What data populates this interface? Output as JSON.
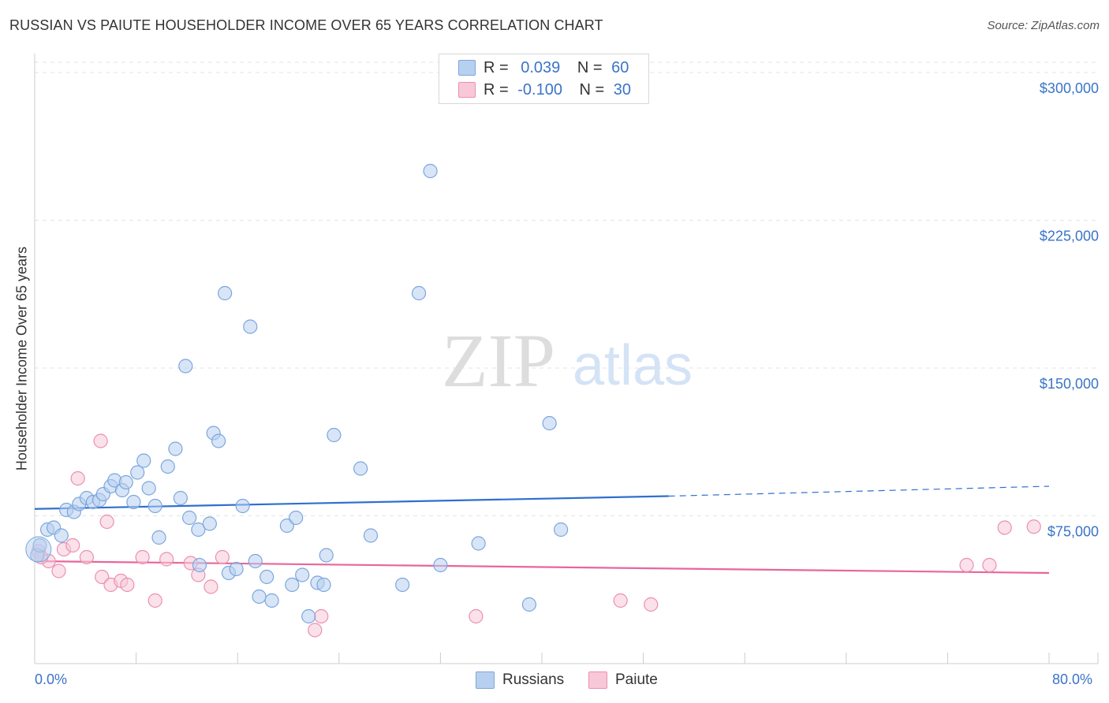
{
  "title": "RUSSIAN VS PAIUTE HOUSEHOLDER INCOME OVER 65 YEARS CORRELATION CHART",
  "source": "Source: ZipAtlas.com",
  "watermark": {
    "zip": "ZIP",
    "atlas": "atlas"
  },
  "legend": {
    "r_label": "R =",
    "n_label": "N =",
    "russians": {
      "r": "0.039",
      "n": "60"
    },
    "paiute": {
      "r": "-0.100",
      "n": "30"
    }
  },
  "bottom_legend": {
    "russians": "Russians",
    "paiute": "Paiute"
  },
  "colors": {
    "russians_fill": "#b8d0f0",
    "russians_stroke": "#7aa6dd",
    "russians_line": "#2f6fcf",
    "paiute_fill": "#f8c8d8",
    "paiute_stroke": "#eb8fb0",
    "paiute_line": "#e8669a",
    "tick_label": "#3a74c8",
    "grid": "#e3e3e3"
  },
  "chart_data": {
    "type": "scatter",
    "title": "RUSSIAN VS PAIUTE HOUSEHOLDER INCOME OVER 65 YEARS CORRELATION CHART",
    "xlabel": "",
    "ylabel": "Householder Income Over 65 years",
    "xlim": [
      0,
      80
    ],
    "ylim": [
      0,
      312000
    ],
    "x_tick_labels": [
      "0.0%",
      "80.0%"
    ],
    "y_ticks": [
      75000,
      150000,
      225000,
      300000
    ],
    "y_tick_labels": [
      "$75,000",
      "$150,000",
      "$225,000",
      "$300,000"
    ],
    "grid": true,
    "series": [
      {
        "name": "Russians",
        "r": 0.039,
        "n": 60,
        "trend": {
          "x0": 0,
          "y0": 78500,
          "x1": 50,
          "y1": 85000,
          "dash_x1": 80,
          "dash_y1": 90000
        },
        "points": [
          [
            0.2,
            55000
          ],
          [
            0.4,
            60000
          ],
          [
            1.0,
            68000
          ],
          [
            1.5,
            69000
          ],
          [
            2.1,
            65000
          ],
          [
            2.5,
            78000
          ],
          [
            3.1,
            77000
          ],
          [
            3.5,
            81000
          ],
          [
            4.1,
            84000
          ],
          [
            4.6,
            82000
          ],
          [
            5.1,
            83000
          ],
          [
            5.4,
            86000
          ],
          [
            6.0,
            90000
          ],
          [
            6.3,
            93000
          ],
          [
            6.9,
            88000
          ],
          [
            7.2,
            92000
          ],
          [
            7.8,
            82000
          ],
          [
            8.1,
            97000
          ],
          [
            8.6,
            103000
          ],
          [
            9.0,
            89000
          ],
          [
            9.5,
            80000
          ],
          [
            9.8,
            64000
          ],
          [
            10.5,
            100000
          ],
          [
            11.1,
            109000
          ],
          [
            11.5,
            84000
          ],
          [
            11.9,
            151000
          ],
          [
            12.2,
            74000
          ],
          [
            12.9,
            68000
          ],
          [
            13.0,
            50000
          ],
          [
            13.8,
            71000
          ],
          [
            14.1,
            117000
          ],
          [
            14.5,
            113000
          ],
          [
            15.0,
            188000
          ],
          [
            15.3,
            46000
          ],
          [
            15.9,
            48000
          ],
          [
            16.4,
            80000
          ],
          [
            17.0,
            171000
          ],
          [
            17.4,
            52000
          ],
          [
            17.7,
            34000
          ],
          [
            18.3,
            44000
          ],
          [
            18.7,
            32000
          ],
          [
            19.9,
            70000
          ],
          [
            20.3,
            40000
          ],
          [
            20.6,
            74000
          ],
          [
            21.1,
            45000
          ],
          [
            21.6,
            24000
          ],
          [
            22.3,
            41000
          ],
          [
            22.8,
            40000
          ],
          [
            23.0,
            55000
          ],
          [
            23.6,
            116000
          ],
          [
            25.7,
            99000
          ],
          [
            26.5,
            65000
          ],
          [
            29.0,
            40000
          ],
          [
            30.3,
            188000
          ],
          [
            31.2,
            250000
          ],
          [
            32.0,
            50000
          ],
          [
            35.0,
            61000
          ],
          [
            39.0,
            30000
          ],
          [
            40.6,
            122000
          ],
          [
            41.5,
            68000
          ]
        ]
      },
      {
        "name": "Paiute",
        "r": -0.1,
        "n": 30,
        "trend": {
          "x0": 0,
          "y0": 52000,
          "x1": 80,
          "y1": 46000
        },
        "points": [
          [
            0.3,
            57000
          ],
          [
            1.1,
            52000
          ],
          [
            1.9,
            47000
          ],
          [
            2.3,
            58000
          ],
          [
            3.0,
            60000
          ],
          [
            3.4,
            94000
          ],
          [
            4.1,
            54000
          ],
          [
            5.2,
            113000
          ],
          [
            5.3,
            44000
          ],
          [
            5.7,
            72000
          ],
          [
            6.0,
            40000
          ],
          [
            6.8,
            42000
          ],
          [
            7.3,
            40000
          ],
          [
            8.5,
            54000
          ],
          [
            9.5,
            32000
          ],
          [
            10.4,
            53000
          ],
          [
            12.3,
            51000
          ],
          [
            12.9,
            45000
          ],
          [
            13.9,
            39000
          ],
          [
            14.8,
            54000
          ],
          [
            22.1,
            17000
          ],
          [
            22.6,
            24000
          ],
          [
            34.8,
            24000
          ],
          [
            46.2,
            32000
          ],
          [
            48.6,
            30000
          ],
          [
            73.5,
            50000
          ],
          [
            75.3,
            50000
          ],
          [
            76.5,
            69000
          ],
          [
            78.8,
            69500
          ],
          [
            0.5,
            54000
          ]
        ]
      }
    ]
  }
}
